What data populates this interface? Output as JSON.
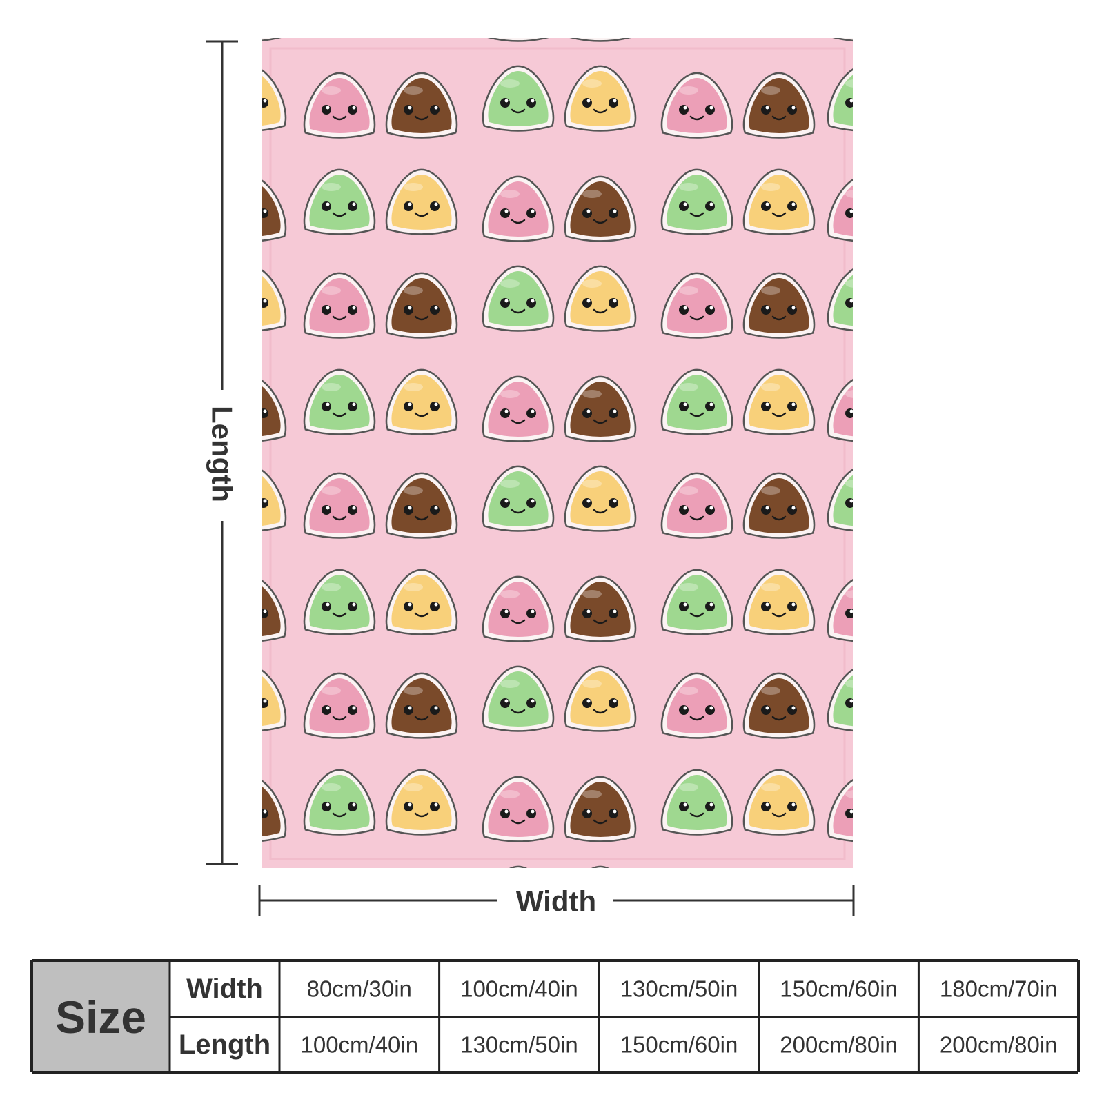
{
  "dimensions": {
    "length": "Length",
    "width": "Width"
  },
  "table": {
    "size_label": "Size",
    "rows": [
      {
        "label": "Width",
        "values": [
          "80cm/30in",
          "100cm/40in",
          "130cm/50in",
          "150cm/60in",
          "180cm/70in"
        ]
      },
      {
        "label": "Length",
        "values": [
          "100cm/40in",
          "130cm/50in",
          "150cm/60in",
          "200cm/80in",
          "200cm/80in"
        ]
      }
    ]
  }
}
